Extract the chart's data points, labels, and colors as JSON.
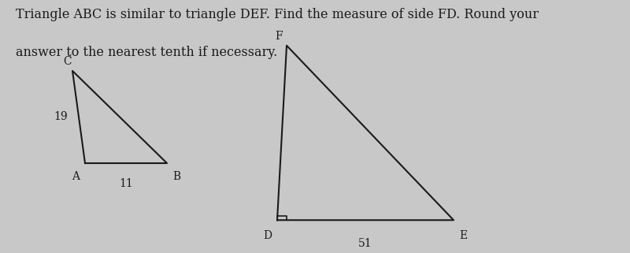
{
  "title_line1": "Triangle ABC is similar to triangle DEF. Find the measure of side FD. Round your",
  "title_line2": "answer to the nearest tenth if necessary.",
  "bg_color": "#c8c8c8",
  "triangle_color": "#1a1a1a",
  "triangle_ABC": {
    "A": [
      0.135,
      0.355
    ],
    "B": [
      0.265,
      0.355
    ],
    "C": [
      0.115,
      0.72
    ],
    "label_A": "A",
    "label_B": "B",
    "label_C": "C",
    "side_AC_label": "19",
    "side_AB_label": "11"
  },
  "triangle_DEF": {
    "D": [
      0.44,
      0.13
    ],
    "E": [
      0.72,
      0.13
    ],
    "F": [
      0.455,
      0.82
    ],
    "label_D": "D",
    "label_E": "E",
    "label_F": "F",
    "side_DE_label": "51"
  },
  "text_color": "#1a1a1a",
  "font_size_title": 11.5,
  "font_size_labels": 10,
  "font_size_side": 10
}
